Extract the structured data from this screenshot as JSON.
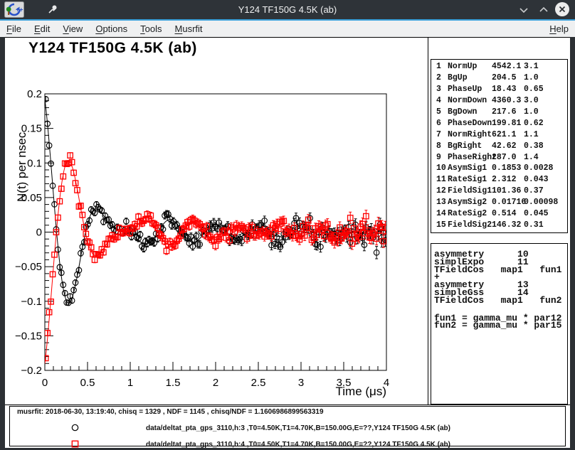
{
  "window": {
    "title": "Y124 TF150G 4.5K (ab)",
    "controls": [
      {
        "name": "minimize",
        "glyph": "chevron-down"
      },
      {
        "name": "maximize",
        "glyph": "chevron-up"
      },
      {
        "name": "close",
        "glyph": "circle-x"
      }
    ]
  },
  "menu": {
    "items": [
      {
        "label": "File"
      },
      {
        "label": "Edit"
      },
      {
        "label": "View"
      },
      {
        "label": "Options"
      },
      {
        "label": "Tools"
      },
      {
        "label": "Musrfit"
      }
    ],
    "right_item": {
      "label": "Help"
    }
  },
  "chart_data": {
    "type": "scatter",
    "title": "Y124 TF150G 4.5K (ab)",
    "xlabel": "Time (μs)",
    "ylabel": "N(t) per nsec",
    "xlim": [
      0,
      4
    ],
    "ylim": [
      -0.2,
      0.2
    ],
    "x_tick_values": [
      0,
      0.5,
      1,
      1.5,
      2,
      2.5,
      3,
      3.5,
      4
    ],
    "x_tick_labels": [
      "0",
      "0.5",
      "1",
      "1.5",
      "2",
      "2.5",
      "3",
      "3.5",
      "4"
    ],
    "x_minor_step": 0.1,
    "y_tick_values": [
      0.2,
      0.15,
      0.1,
      0.05,
      0,
      -0.05,
      -0.1,
      -0.15,
      -0.2
    ],
    "y_tick_labels": [
      "0.2",
      "0.15",
      "0.1",
      "0.05",
      "0",
      "−0.05",
      "−0.1",
      "−0.15",
      "−0.2"
    ],
    "y_minor_step": 0.01,
    "grid": false,
    "legend_position": "bottom-pane",
    "model": "y(t) = A1*exp(-rate1*t)*cos(w1*t+phase) + A2*exp(-0.5*(rate2*t)^2)*cos(w2*t+phase) + gaussian noise",
    "t_start": 0.01,
    "t_step": 0.0205,
    "n_points": 195,
    "sigma0": 0.0037,
    "sigma_growth_tau": 4.39,
    "noise_scale": 1.05,
    "series": [
      {
        "name": "data/deltat_pta_gps_3110,h:3",
        "marker": "open-circle",
        "color": "#000000",
        "A1": 0.1853,
        "rate1": 2.312,
        "freq1_rad": 8.632,
        "A2": 0.01716,
        "rate2": 0.514,
        "freq2_rad": 12.462,
        "phase_deg": 18.43,
        "seed": 7
      },
      {
        "name": "data/deltat_pta_gps_3110,h:4",
        "marker": "open-square",
        "color": "#ff0000",
        "A1": 0.1853,
        "rate1": 2.312,
        "freq1_rad": 8.632,
        "A2": 0.01716,
        "rate2": 0.514,
        "freq2_rad": 12.462,
        "phase_deg": 199.81,
        "seed": 13
      }
    ]
  },
  "params_table": {
    "rows": [
      {
        "no": "1",
        "name": "NormUp",
        "value": "4542.1",
        "error": "3.1"
      },
      {
        "no": "2",
        "name": "BgUp",
        "value": "204.5",
        "error": "1.0"
      },
      {
        "no": "3",
        "name": "PhaseUp",
        "value": "18.43",
        "error": "0.65"
      },
      {
        "no": "4",
        "name": "NormDown",
        "value": "4360.3",
        "error": "3.0"
      },
      {
        "no": "5",
        "name": "BgDown",
        "value": "217.6",
        "error": "1.0"
      },
      {
        "no": "6",
        "name": "PhaseDown",
        "value": "199.81",
        "error": "0.62"
      },
      {
        "no": "7",
        "name": "NormRight",
        "value": "621.1",
        "error": "1.1"
      },
      {
        "no": "8",
        "name": "BgRight",
        "value": "42.62",
        "error": "0.38"
      },
      {
        "no": "9",
        "name": "PhaseRight",
        "value": "287.0",
        "error": "1.4"
      },
      {
        "no": "10",
        "name": "AsymSig1",
        "value": "0.1853",
        "error": "0.0028"
      },
      {
        "no": "11",
        "name": "RateSig1",
        "value": "2.312",
        "error": "0.043"
      },
      {
        "no": "12",
        "name": "FieldSig1",
        "value": "101.36",
        "error": "0.37"
      },
      {
        "no": "13",
        "name": "AsymSig2",
        "value": "0.01716",
        "error": "0.00098"
      },
      {
        "no": "14",
        "name": "RateSig2",
        "value": "0.514",
        "error": "0.045"
      },
      {
        "no": "15",
        "name": "FieldSig2",
        "value": "146.32",
        "error": "0.31"
      }
    ]
  },
  "theory": {
    "block1": [
      "asymmetry      10",
      "simplExpo      11",
      "TFieldCos   map1   fun1",
      "+",
      "asymmetry      13",
      "simpleGss      14",
      "TFieldCos   map1   fun2"
    ],
    "block2": [
      "fun1 = gamma_mu * par12",
      "fun2 = gamma_mu * par15"
    ]
  },
  "footer": {
    "status": "musrfit: 2018-06-30, 13:19:40, chisq = 1329 , NDF = 1145 , chisq/NDF = 1.1606986899563319",
    "legend": [
      {
        "marker": "open-circle",
        "color": "#000000",
        "label": "data/deltat_pta_gps_3110,h:3 ,T0=4.50K,T1=4.70K,B=150.00G,E=??,Y124 TF150G 4.5K (ab)"
      },
      {
        "marker": "open-square",
        "color": "#ff0000",
        "label": "data/deltat_pta_gps_3110,h:4 ,T0=4.50K,T1=4.70K,B=150.00G,E=??,Y124 TF150G 4.5K (ab)"
      }
    ]
  }
}
